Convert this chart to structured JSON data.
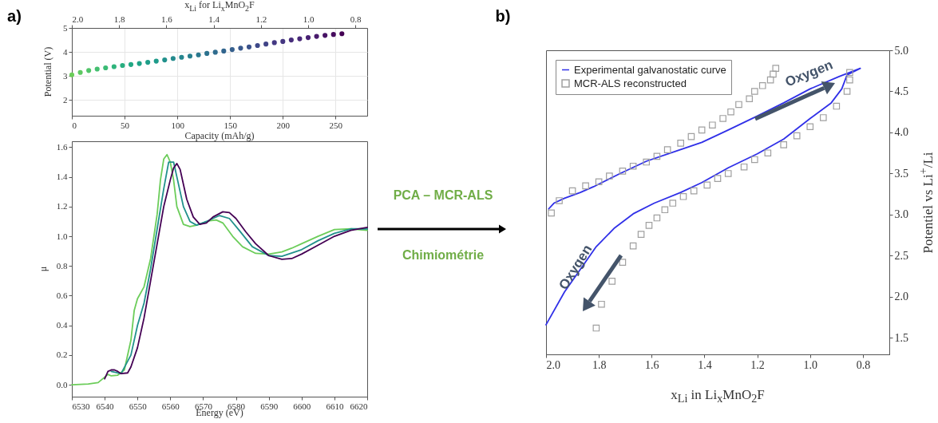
{
  "chart_data": [
    {
      "type": "scatter",
      "annotations": [
        "a)"
      ],
      "xlabel": "Capacity (mAh/g)",
      "ylabel": "Potential (V)",
      "x2label": "x$_{Li}$ for Li$_{x}$MnO$_{2}$F",
      "marker": "circle",
      "grid": true,
      "xlim": [
        0,
        280
      ],
      "xticks": [
        0,
        50,
        100,
        150,
        200,
        250
      ],
      "x2lim": [
        2.0,
        0.75
      ],
      "x2ticks": [
        {
          "value": 2,
          "label": "2.0"
        },
        1.8,
        1.6,
        1.4,
        1.2,
        {
          "value": 1,
          "label": "1.0"
        },
        0.8
      ],
      "ylim": [
        1.35,
        5
      ],
      "yticks": [
        2,
        3,
        4,
        5
      ],
      "x": [
        0,
        8,
        16,
        24,
        32,
        40,
        48,
        56,
        64,
        72,
        80,
        88,
        96,
        104,
        112,
        120,
        128,
        136,
        144,
        152,
        160,
        168,
        176,
        184,
        192,
        200,
        208,
        216,
        224,
        232,
        240,
        248,
        256
      ],
      "values": [
        3.05,
        3.15,
        3.23,
        3.29,
        3.34,
        3.39,
        3.44,
        3.48,
        3.52,
        3.57,
        3.62,
        3.67,
        3.73,
        3.78,
        3.83,
        3.88,
        3.94,
        3.99,
        4.04,
        4.1,
        4.16,
        4.21,
        4.27,
        4.33,
        4.39,
        4.44,
        4.5,
        4.55,
        4.6,
        4.65,
        4.69,
        4.73,
        4.76
      ],
      "colors": [
        "#6ccd5a",
        "#5ec962",
        "#52c569",
        "#44bf70",
        "#3bbb75",
        "#2fb47c",
        "#28ae80",
        "#22a884",
        "#1fa287",
        "#1f9e89",
        "#1e9b8a",
        "#21918c",
        "#238a8d",
        "#25858e",
        "#277f8e",
        "#2a788e",
        "#2c728e",
        "#2f6c8e",
        "#32658e",
        "#355f8d",
        "#38588c",
        "#3b528b",
        "#3e4989",
        "#414487",
        "#443983",
        "#453781",
        "#472d7b",
        "#482878",
        "#482173",
        "#481a6c",
        "#471365",
        "#460b5e",
        "#440154"
      ]
    },
    {
      "type": "line",
      "xlabel": "Energy (eV)",
      "ylabel": "μ",
      "xlim": [
        6530,
        6620
      ],
      "xticks": [
        6530,
        6540,
        6550,
        6560,
        6570,
        6580,
        6590,
        6600,
        6610,
        6620
      ],
      "ylim": [
        -0.08,
        1.64
      ],
      "yticks": [
        {
          "value": 0,
          "label": "0.0"
        },
        0.2,
        0.4,
        0.6,
        0.8,
        {
          "value": 1,
          "label": "1.0"
        },
        1.2,
        1.4,
        1.6
      ],
      "series": [
        {
          "color": "#6ccd5a",
          "x": [
            6530,
            6535,
            6538,
            6541,
            6542,
            6544,
            6546,
            6548,
            6549,
            6550,
            6552,
            6554,
            6556,
            6557,
            6558,
            6559,
            6560,
            6561,
            6562,
            6564,
            6566,
            6568,
            6570,
            6572,
            6574,
            6576,
            6579,
            6582,
            6586,
            6590,
            6594,
            6597,
            6600,
            6605,
            6610,
            6615,
            6620
          ],
          "values": [
            0.0,
            0.005,
            0.015,
            0.07,
            0.06,
            0.065,
            0.1,
            0.3,
            0.5,
            0.58,
            0.66,
            0.85,
            1.15,
            1.38,
            1.52,
            1.55,
            1.5,
            1.38,
            1.2,
            1.08,
            1.065,
            1.075,
            1.09,
            1.105,
            1.11,
            1.09,
            1.0,
            0.93,
            0.885,
            0.88,
            0.895,
            0.92,
            0.95,
            1.0,
            1.045,
            1.05,
            1.04
          ]
        },
        {
          "color": "#21918c",
          "x": [
            6542,
            6545,
            6548,
            6550,
            6552,
            6554,
            6556,
            6558,
            6559.5,
            6561,
            6562,
            6564,
            6566,
            6568,
            6571,
            6575,
            6578,
            6581,
            6585,
            6590,
            6594,
            6600,
            6605,
            6610,
            6615,
            6620
          ],
          "values": [
            0.09,
            0.075,
            0.2,
            0.4,
            0.55,
            0.78,
            1.05,
            1.32,
            1.5,
            1.5,
            1.4,
            1.2,
            1.1,
            1.075,
            1.1,
            1.14,
            1.12,
            1.04,
            0.93,
            0.87,
            0.865,
            0.91,
            0.97,
            1.02,
            1.05,
            1.05
          ]
        },
        {
          "color": "#440154",
          "x": [
            6540,
            6541,
            6542,
            6543,
            6544,
            6545,
            6547,
            6548,
            6550,
            6552,
            6554,
            6556,
            6558,
            6560,
            6561,
            6562,
            6563,
            6564,
            6565,
            6567,
            6569,
            6571,
            6573,
            6576,
            6578,
            6580,
            6583,
            6586,
            6590,
            6594,
            6597,
            6600,
            6605,
            6610,
            6615,
            6620
          ],
          "values": [
            0.04,
            0.09,
            0.1,
            0.1,
            0.09,
            0.075,
            0.08,
            0.12,
            0.25,
            0.45,
            0.7,
            0.95,
            1.2,
            1.38,
            1.46,
            1.49,
            1.45,
            1.35,
            1.25,
            1.13,
            1.08,
            1.09,
            1.13,
            1.165,
            1.16,
            1.12,
            1.03,
            0.95,
            0.87,
            0.845,
            0.85,
            0.88,
            0.94,
            1.0,
            1.04,
            1.06
          ]
        }
      ]
    },
    {
      "type": "line",
      "xlabel": "x$_{Li}$ in Li$_{x}$MnO$_{2}$F",
      "ylabel": "Potentiel vs Li$^{+}$/Li",
      "legend": "top left",
      "annotations": [
        {
          "text": "Oxygen",
          "x": 1.0,
          "y": 4.53
        },
        {
          "text": "Oxygen",
          "x": 1.9,
          "y": 2.2
        },
        "b)",
        "PCA – MCR-ALS",
        "Chimiométrie"
      ],
      "xlim": [
        2.0,
        0.7
      ],
      "xticks": [
        {
          "value": 2,
          "label": "2.0"
        },
        1.8,
        1.6,
        1.4,
        1.2,
        {
          "value": 1,
          "label": "1.0"
        },
        0.8
      ],
      "ylim": [
        1.3,
        5.0
      ],
      "yticks": [
        1.5,
        {
          "value": 2,
          "label": "2.0"
        },
        2.5,
        {
          "value": 3,
          "label": "3.0"
        },
        3.5,
        {
          "value": 4,
          "label": "4.0"
        },
        4.5,
        {
          "value": 5,
          "label": "5.0"
        }
      ],
      "series": [
        {
          "name": "Experimental galvanostatic curve",
          "type": "line",
          "color": "#3030e8",
          "x": [
            2.0,
            1.93,
            1.86,
            1.81,
            1.74,
            1.67,
            1.59,
            1.49,
            1.41,
            1.31,
            1.2,
            1.1,
            1.0,
            0.92,
            0.88,
            0.86,
            0.81,
            0.89,
            1.0,
            1.1,
            1.2,
            1.31,
            1.41,
            1.51,
            1.62,
            1.72,
            1.82,
            1.87,
            1.93,
            1.97,
            1.99
          ],
          "values": [
            1.66,
            2.06,
            2.38,
            2.61,
            2.84,
            3.01,
            3.14,
            3.27,
            3.39,
            3.57,
            3.74,
            3.92,
            4.17,
            4.36,
            4.53,
            4.7,
            4.78,
            4.68,
            4.53,
            4.36,
            4.2,
            4.03,
            3.88,
            3.77,
            3.65,
            3.5,
            3.34,
            3.27,
            3.2,
            3.14,
            3.07
          ]
        },
        {
          "name": "MCR-ALS reconstructed",
          "type": "scatter",
          "marker": "square",
          "color": "#a0a0a0",
          "x": [
            1.98,
            1.95,
            1.9,
            1.85,
            1.8,
            1.76,
            1.71,
            1.67,
            1.62,
            1.58,
            1.54,
            1.49,
            1.45,
            1.41,
            1.37,
            1.33,
            1.3,
            1.27,
            1.23,
            1.21,
            1.18,
            1.15,
            1.14,
            1.13,
            0.85,
            0.85,
            0.86,
            0.9,
            0.95,
            1.0,
            1.05,
            1.1,
            1.16,
            1.21,
            1.25,
            1.31,
            1.35,
            1.39,
            1.44,
            1.48,
            1.52,
            1.55,
            1.58,
            1.61,
            1.64,
            1.67,
            1.71,
            1.75,
            1.79,
            1.81
          ],
          "values": [
            3.02,
            3.17,
            3.29,
            3.35,
            3.4,
            3.47,
            3.53,
            3.59,
            3.64,
            3.71,
            3.79,
            3.87,
            3.95,
            4.03,
            4.09,
            4.17,
            4.25,
            4.34,
            4.41,
            4.5,
            4.57,
            4.64,
            4.71,
            4.78,
            4.73,
            4.64,
            4.5,
            4.32,
            4.18,
            4.07,
            3.96,
            3.85,
            3.75,
            3.67,
            3.58,
            3.5,
            3.44,
            3.36,
            3.29,
            3.22,
            3.14,
            3.06,
            2.96,
            2.87,
            2.76,
            2.62,
            2.42,
            2.19,
            1.91,
            1.62
          ]
        }
      ]
    }
  ]
}
